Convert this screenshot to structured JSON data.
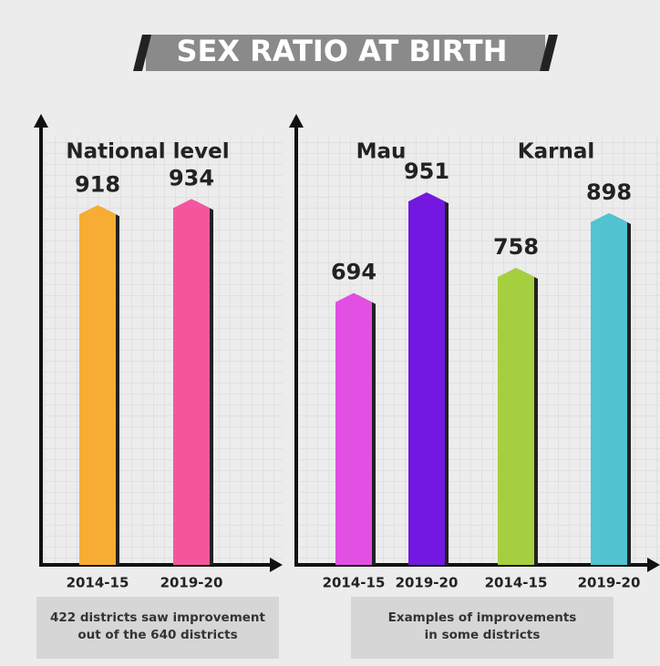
{
  "title": "SEX RATIO AT BIRTH",
  "notes": [
    [
      "422 districts saw improvement",
      "out of  the 640 districts"
    ],
    [
      "Examples of improvements",
      "in some districts"
    ]
  ],
  "chart_data": [
    {
      "type": "bar",
      "title": "National level",
      "categories": [
        "2014-15",
        "2019-20"
      ],
      "values": [
        918,
        934
      ],
      "colors": [
        "#f7ac33",
        "#f5569b"
      ],
      "ylim": [
        0,
        1000
      ]
    },
    {
      "type": "bar",
      "title": "Mau",
      "categories": [
        "2014-15",
        "2019-20"
      ],
      "values": [
        694,
        951
      ],
      "colors": [
        "#e14fe3",
        "#7218e0"
      ],
      "ylim": [
        0,
        1000
      ]
    },
    {
      "type": "bar",
      "title": "Karnal",
      "categories": [
        "2014-15",
        "2019-20"
      ],
      "values": [
        758,
        898
      ],
      "colors": [
        "#a6cf3f",
        "#52c3d0"
      ],
      "ylim": [
        0,
        1000
      ]
    }
  ]
}
